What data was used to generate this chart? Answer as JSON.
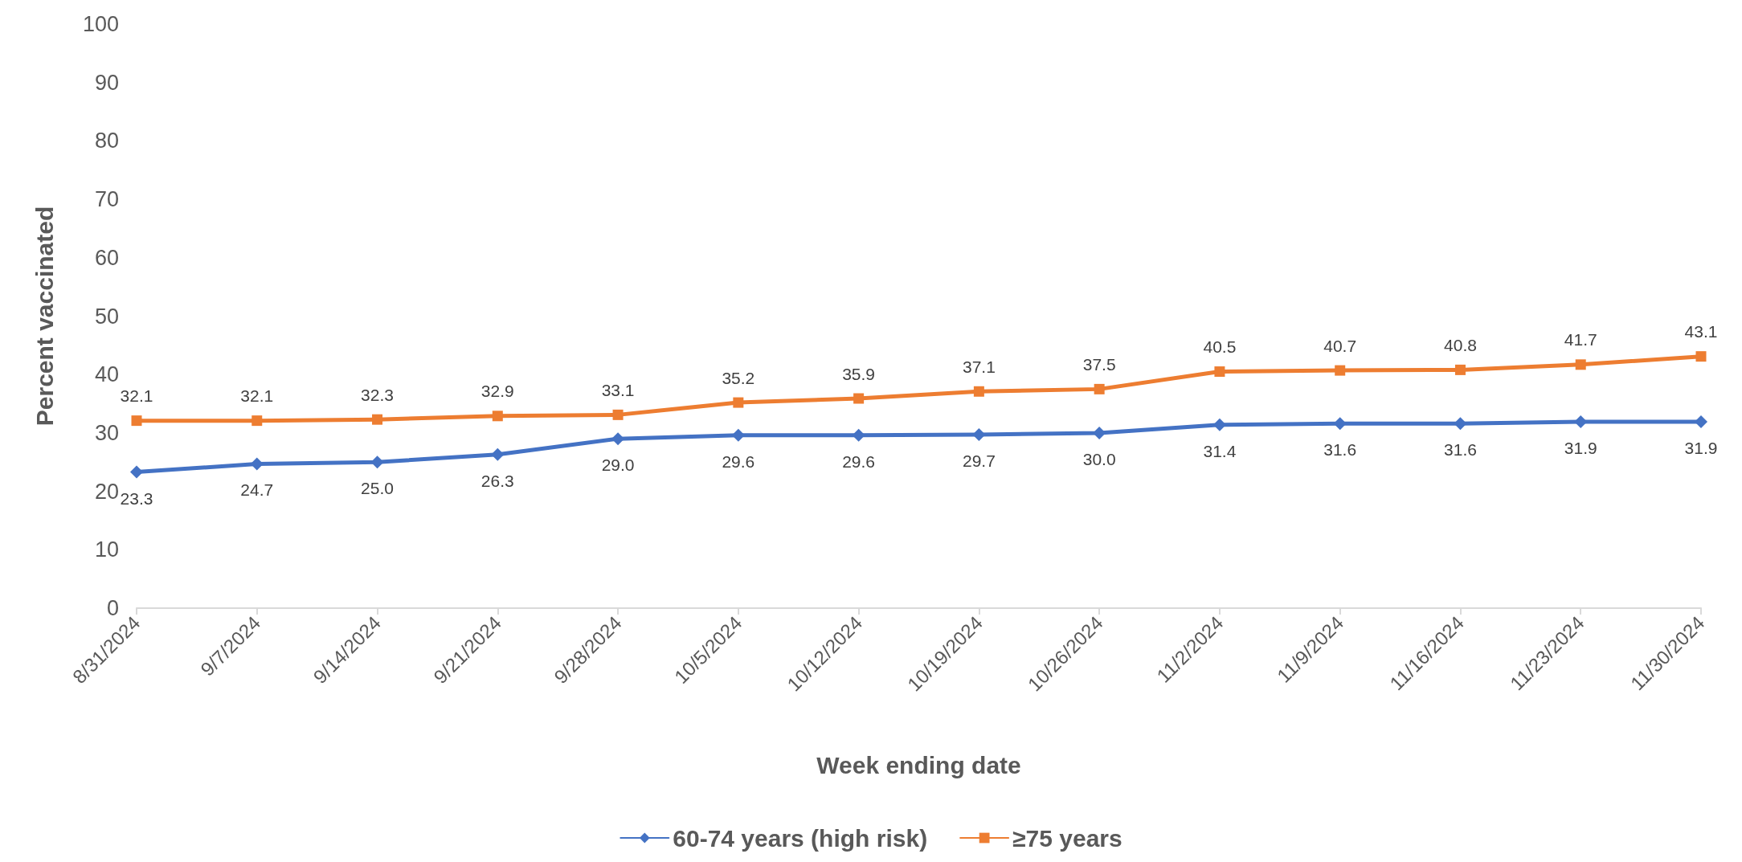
{
  "chart_data": {
    "type": "line",
    "xlabel": "Week ending date",
    "ylabel": "Percent vaccinated",
    "categories": [
      "8/31/2024",
      "9/7/2024",
      "9/14/2024",
      "9/21/2024",
      "9/28/2024",
      "10/5/2024",
      "10/12/2024",
      "10/19/2024",
      "10/26/2024",
      "11/2/2024",
      "11/9/2024",
      "11/16/2024",
      "11/23/2024",
      "11/30/2024"
    ],
    "series": [
      {
        "name": "60-74 years (high risk)",
        "color": "#4472c4",
        "marker": "diamond",
        "values": [
          23.3,
          24.7,
          25.0,
          26.3,
          29.0,
          29.6,
          29.6,
          29.7,
          30.0,
          31.4,
          31.6,
          31.6,
          31.9,
          31.9
        ],
        "value_labels": [
          "23.3",
          "24.7",
          "25.0",
          "26.3",
          "29.0",
          "29.6",
          "29.6",
          "29.7",
          "30.0",
          "31.4",
          "31.6",
          "31.6",
          "31.9",
          "31.9"
        ]
      },
      {
        "name": "≥75 years",
        "color": "#ed7d31",
        "marker": "square",
        "values": [
          32.1,
          32.1,
          32.3,
          32.9,
          33.1,
          35.2,
          35.9,
          37.1,
          37.5,
          40.5,
          40.7,
          40.8,
          41.7,
          43.1
        ],
        "value_labels": [
          "32.1",
          "32.1",
          "32.3",
          "32.9",
          "33.1",
          "35.2",
          "35.9",
          "37.1",
          "37.5",
          "40.5",
          "40.7",
          "40.8",
          "41.7",
          "43.1"
        ]
      }
    ],
    "ylim": [
      0,
      100
    ],
    "yticks": [
      0,
      10,
      20,
      30,
      40,
      50,
      60,
      70,
      80,
      90,
      100
    ],
    "grid": false,
    "legend": "bottom",
    "line_style": "solid"
  }
}
